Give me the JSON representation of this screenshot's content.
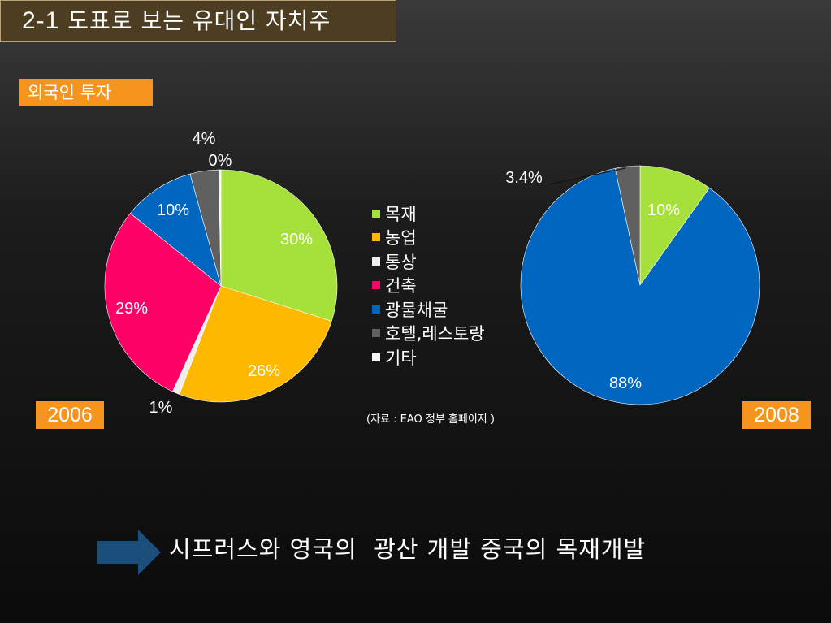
{
  "title": {
    "number": "2-1",
    "text": "도표로 보는 유대인 자치주"
  },
  "tag_label": "외국인 투자",
  "legend": {
    "items": [
      {
        "label": "목재",
        "color": "#a6e03a"
      },
      {
        "label": "농업",
        "color": "#ffb800"
      },
      {
        "label": "통상",
        "color": "#eeeeee"
      },
      {
        "label": "건축",
        "color": "#ff0066"
      },
      {
        "label": "광물채굴",
        "color": "#0066c0"
      },
      {
        "label": "호텔,레스토랑",
        "color": "#606060"
      },
      {
        "label": "기타",
        "color": "#f5f5f5"
      }
    ]
  },
  "source": "(자료 : EAO 정부 홈페이지 )",
  "bottom_text": "시프러스와 영국의  광산 개발 중국의 목재개발",
  "chart_data": [
    {
      "type": "pie",
      "year_label": "2006",
      "categories": [
        "목재",
        "농업",
        "통상",
        "건축",
        "광물채굴",
        "호텔,레스토랑",
        "기타"
      ],
      "values": [
        30,
        26,
        1,
        29,
        10,
        4,
        0.3
      ],
      "labels": [
        "30%",
        "26%",
        "1%",
        "29%",
        "10%",
        "4%",
        "0%"
      ]
    },
    {
      "type": "pie",
      "year_label": "2008",
      "categories": [
        "목재",
        "광물채굴",
        "호텔,레스토랑"
      ],
      "values": [
        10,
        88,
        3.4
      ],
      "labels": [
        "10%",
        "88%",
        "3.4%"
      ]
    }
  ]
}
